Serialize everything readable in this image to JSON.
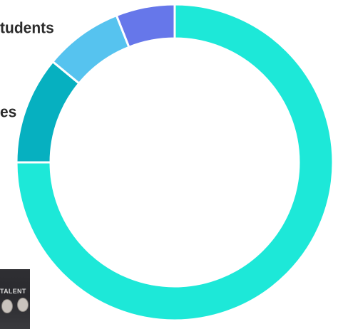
{
  "labels": {
    "students": "tudents",
    "es": "es"
  },
  "thumbnail": {
    "caption": "TALENT"
  },
  "colors": {
    "teal_large": "#1de8d8",
    "teal_dark": "#06b0c0",
    "sky_blue": "#56c3ef",
    "periwinkle": "#6677ea"
  },
  "chart_data": {
    "type": "pie",
    "variant": "donut",
    "title": "",
    "slices": [
      {
        "label": "",
        "value": 75,
        "color": "#1de8d8"
      },
      {
        "label": "",
        "value": 11,
        "color": "#06b0c0"
      },
      {
        "label": "",
        "value": 8,
        "color": "#56c3ef"
      },
      {
        "label": "",
        "value": 6,
        "color": "#6677ea"
      }
    ],
    "start_angle_deg": 0,
    "direction": "clockwise",
    "legend": "none"
  }
}
